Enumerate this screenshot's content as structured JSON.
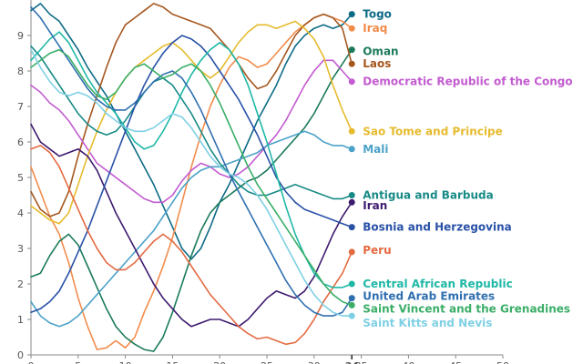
{
  "chart_data": {
    "type": "line",
    "title": "",
    "xlabel": "",
    "ylabel": "",
    "xlim": [
      0,
      50
    ],
    "ylim": [
      0,
      10
    ],
    "x_ticks": [
      0,
      5,
      10,
      15,
      20,
      25,
      30,
      35,
      40,
      45,
      50
    ],
    "y_ticks": [
      0,
      1,
      2,
      3,
      4,
      5,
      6,
      7,
      8,
      9
    ],
    "x_tick_labels": [
      "0",
      "5",
      "10",
      "15",
      "20",
      "25",
      "30",
      "35",
      "40",
      "45",
      "50"
    ],
    "y_tick_labels": [
      "0",
      "1",
      "2",
      "3",
      "4",
      "5",
      "6",
      "7",
      "8",
      "9"
    ],
    "highlight_x": 34,
    "highlight_x_label": "34",
    "grid": false,
    "legend": "direct labels at line ends",
    "x": [
      0,
      1,
      2,
      3,
      4,
      5,
      6,
      7,
      8,
      9,
      10,
      11,
      12,
      13,
      14,
      15,
      16,
      17,
      18,
      19,
      20,
      21,
      22,
      23,
      24,
      25,
      26,
      27,
      28,
      29,
      30,
      31,
      32,
      33,
      34
    ],
    "series": [
      {
        "name": "Togo",
        "color": "#0e6b86",
        "values": [
          9.7,
          9.9,
          9.6,
          9.4,
          9.0,
          8.6,
          8.1,
          7.7,
          7.3,
          6.8,
          6.3,
          5.8,
          5.3,
          4.8,
          4.2,
          3.6,
          3.0,
          2.7,
          3.0,
          3.6,
          4.3,
          4.8,
          5.4,
          6.0,
          6.6,
          7.1,
          7.6,
          8.2,
          8.7,
          9.0,
          9.2,
          9.3,
          9.2,
          9.3,
          9.6
        ]
      },
      {
        "name": "Iraq",
        "color": "#f28c4c",
        "values": [
          5.3,
          4.6,
          3.9,
          3.4,
          2.6,
          1.6,
          0.8,
          0.15,
          0.2,
          0.4,
          0.2,
          0.5,
          1.2,
          1.8,
          2.5,
          3.3,
          4.3,
          5.3,
          6.2,
          7.0,
          7.6,
          8.1,
          8.4,
          8.3,
          8.1,
          8.2,
          8.5,
          8.8,
          9.1,
          9.3,
          9.5,
          9.6,
          9.5,
          9.4,
          9.2
        ]
      },
      {
        "name": "Oman",
        "color": "#1b7a5a",
        "values": [
          2.2,
          2.3,
          2.8,
          3.2,
          3.4,
          3.1,
          2.5,
          1.9,
          1.3,
          0.8,
          0.5,
          0.3,
          0.15,
          0.1,
          0.5,
          1.2,
          2.0,
          2.8,
          3.5,
          4.0,
          4.3,
          4.5,
          4.7,
          4.9,
          5.0,
          5.2,
          5.5,
          5.8,
          6.1,
          6.4,
          6.8,
          7.3,
          7.8,
          8.2,
          8.6
        ]
      },
      {
        "name": "Laos",
        "color": "#a5571f",
        "values": [
          4.6,
          4.1,
          3.9,
          4.0,
          4.6,
          5.6,
          6.5,
          7.3,
          8.1,
          8.8,
          9.3,
          9.5,
          9.7,
          9.9,
          9.8,
          9.6,
          9.5,
          9.4,
          9.3,
          9.2,
          8.9,
          8.6,
          8.2,
          7.8,
          7.5,
          7.6,
          8.0,
          8.5,
          9.0,
          9.3,
          9.5,
          9.6,
          9.5,
          9.2,
          8.2
        ]
      },
      {
        "name": "Democratic Republic of the Congo",
        "color": "#c35bd0",
        "values": [
          7.6,
          7.4,
          7.1,
          6.9,
          6.6,
          6.2,
          5.8,
          5.4,
          5.2,
          5.0,
          4.8,
          4.6,
          4.4,
          4.3,
          4.3,
          4.5,
          4.9,
          5.2,
          5.4,
          5.3,
          5.1,
          5.0,
          5.1,
          5.3,
          5.6,
          5.9,
          6.2,
          6.6,
          7.1,
          7.6,
          8.0,
          8.3,
          8.3,
          8.0,
          7.7
        ]
      },
      {
        "name": "Sao Tome and Principe",
        "color": "#e6bb2e",
        "values": [
          4.2,
          4.0,
          3.8,
          3.7,
          4.0,
          4.8,
          5.6,
          6.3,
          6.9,
          7.4,
          7.8,
          8.1,
          8.3,
          8.5,
          8.7,
          8.8,
          8.6,
          8.3,
          8.0,
          7.8,
          8.0,
          8.4,
          8.8,
          9.1,
          9.3,
          9.3,
          9.2,
          9.3,
          9.4,
          9.2,
          8.9,
          8.4,
          7.6,
          6.9,
          6.3
        ]
      },
      {
        "name": "Mali",
        "color": "#4ba2c8",
        "values": [
          1.5,
          1.1,
          0.9,
          0.8,
          0.9,
          1.1,
          1.4,
          1.7,
          2.0,
          2.3,
          2.6,
          2.9,
          3.2,
          3.5,
          3.9,
          4.3,
          4.7,
          5.0,
          5.2,
          5.3,
          5.3,
          5.4,
          5.5,
          5.6,
          5.7,
          5.9,
          6.0,
          6.1,
          6.2,
          6.3,
          6.2,
          6.0,
          5.9,
          5.9,
          5.8
        ]
      },
      {
        "name": "Antigua and Barbuda",
        "color": "#178a86",
        "values": [
          8.7,
          8.4,
          8.0,
          7.6,
          7.2,
          6.8,
          6.5,
          6.3,
          6.2,
          6.3,
          6.6,
          7.0,
          7.4,
          7.7,
          7.8,
          7.6,
          7.2,
          6.8,
          6.3,
          5.8,
          5.4,
          5.1,
          4.8,
          4.6,
          4.5,
          4.5,
          4.6,
          4.7,
          4.8,
          4.7,
          4.6,
          4.5,
          4.4,
          4.4,
          4.5
        ]
      },
      {
        "name": "Iran",
        "color": "#3d1a6e",
        "values": [
          6.5,
          6.0,
          5.8,
          5.6,
          5.7,
          5.8,
          5.6,
          5.2,
          4.6,
          4.0,
          3.5,
          3.0,
          2.5,
          2.0,
          1.6,
          1.3,
          1.0,
          0.8,
          0.9,
          1.0,
          1.0,
          0.9,
          0.8,
          1.0,
          1.3,
          1.6,
          1.8,
          1.7,
          1.6,
          1.8,
          2.2,
          2.8,
          3.4,
          3.9,
          4.3
        ]
      },
      {
        "name": "Bosnia and Herzegovina",
        "color": "#2851a6",
        "values": [
          1.2,
          1.3,
          1.5,
          1.8,
          2.3,
          2.9,
          3.5,
          4.2,
          4.9,
          5.6,
          6.3,
          7.0,
          7.6,
          8.1,
          8.5,
          8.8,
          9.0,
          8.9,
          8.7,
          8.4,
          8.0,
          7.6,
          7.2,
          6.7,
          6.2,
          5.6,
          5.0,
          4.6,
          4.3,
          4.1,
          4.0,
          3.9,
          3.8,
          3.7,
          3.6
        ]
      },
      {
        "name": "Peru",
        "color": "#e46a42",
        "values": [
          5.8,
          5.9,
          5.7,
          5.3,
          4.7,
          4.1,
          3.5,
          3.0,
          2.6,
          2.4,
          2.4,
          2.6,
          2.9,
          3.2,
          3.4,
          3.2,
          2.9,
          2.5,
          2.1,
          1.7,
          1.4,
          1.1,
          0.8,
          0.6,
          0.45,
          0.5,
          0.4,
          0.3,
          0.35,
          0.6,
          1.0,
          1.5,
          1.9,
          2.3,
          2.9
        ]
      },
      {
        "name": "Central African Republic",
        "color": "#1fb8a6",
        "values": [
          8.3,
          8.6,
          8.9,
          9.1,
          8.8,
          8.3,
          7.8,
          7.4,
          7.1,
          6.8,
          6.4,
          6.0,
          5.8,
          5.9,
          6.3,
          6.8,
          7.4,
          7.9,
          8.3,
          8.6,
          8.8,
          8.6,
          8.2,
          7.6,
          6.8,
          6.0,
          5.1,
          4.2,
          3.4,
          2.8,
          2.3,
          2.0,
          1.9,
          1.9,
          2.0
        ]
      },
      {
        "name": "United Arab Emirates",
        "color": "#2f6fb0",
        "values": [
          9.8,
          9.5,
          9.1,
          8.7,
          8.3,
          7.9,
          7.5,
          7.2,
          7.0,
          6.9,
          6.9,
          7.1,
          7.4,
          7.7,
          7.9,
          8.0,
          7.8,
          7.4,
          6.9,
          6.3,
          5.7,
          5.1,
          4.6,
          4.1,
          3.6,
          3.1,
          2.6,
          2.1,
          1.7,
          1.4,
          1.2,
          1.1,
          1.1,
          1.2,
          1.6
        ]
      },
      {
        "name": "Saint Vincent and the Grenadines",
        "color": "#3aae67",
        "values": [
          8.1,
          8.3,
          8.5,
          8.6,
          8.4,
          8.0,
          7.6,
          7.3,
          7.2,
          7.4,
          7.8,
          8.1,
          8.2,
          8.0,
          7.8,
          7.9,
          8.1,
          8.2,
          8.0,
          7.6,
          7.1,
          6.5,
          5.9,
          5.3,
          4.8,
          4.4,
          4.0,
          3.6,
          3.2,
          2.8,
          2.4,
          2.0,
          1.7,
          1.5,
          1.4
        ]
      },
      {
        "name": "Saint Kitts and Nevis",
        "color": "#7fd0e4",
        "values": [
          8.6,
          8.1,
          7.7,
          7.4,
          7.3,
          7.4,
          7.3,
          7.1,
          6.8,
          6.6,
          6.4,
          6.3,
          6.3,
          6.4,
          6.6,
          6.8,
          6.7,
          6.4,
          6.0,
          5.6,
          5.3,
          5.1,
          5.0,
          4.8,
          4.5,
          4.1,
          3.6,
          3.1,
          2.6,
          2.1,
          1.7,
          1.4,
          1.2,
          1.1,
          1.1
        ]
      }
    ],
    "end_labels": [
      {
        "name": "Togo",
        "y": 9.6
      },
      {
        "name": "Iraq",
        "y": 9.2
      },
      {
        "name": "Oman",
        "y": 8.55
      },
      {
        "name": "Laos",
        "y": 8.2
      },
      {
        "name": "Democratic Republic of the Congo",
        "y": 7.7
      },
      {
        "name": "Sao Tome and Principe",
        "y": 6.3
      },
      {
        "name": "Mali",
        "y": 5.8
      },
      {
        "name": "Antigua and Barbuda",
        "y": 4.5
      },
      {
        "name": "Iran",
        "y": 4.2
      },
      {
        "name": "Bosnia and Herzegovina",
        "y": 3.6
      },
      {
        "name": "Peru",
        "y": 2.95
      },
      {
        "name": "Central African Republic",
        "y": 2.0
      },
      {
        "name": "United Arab Emirates",
        "y": 1.65
      },
      {
        "name": "Saint Vincent and the Grenadines",
        "y": 1.3
      },
      {
        "name": "Saint Kitts and Nevis",
        "y": 0.9
      }
    ]
  }
}
